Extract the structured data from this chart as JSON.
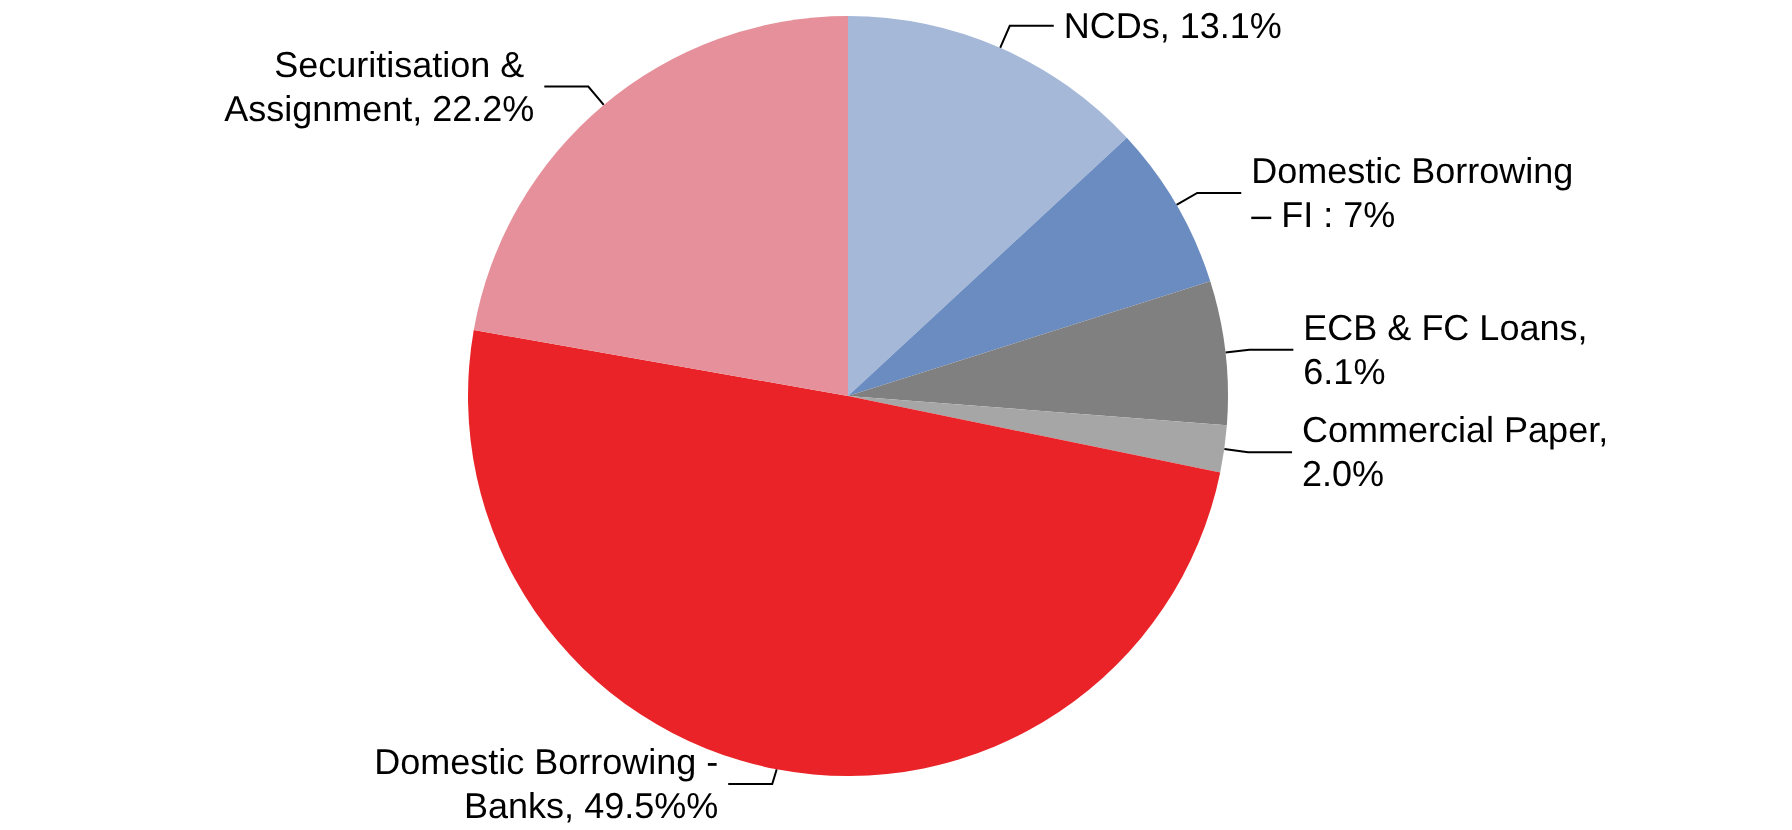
{
  "chart_data": {
    "type": "pie",
    "categories": [
      "NCDs",
      "Domestic Borrowing – FI",
      "ECB & FC Loans",
      "Commercial Paper",
      "Domestic Borrowing - Banks",
      "Securitisation & Assignment"
    ],
    "values": [
      13.1,
      7,
      6.1,
      2.0,
      49.5,
      22.2
    ],
    "value_labels": [
      ", 13.1%",
      " : 7%",
      ", 6.1%",
      ", 2.0%",
      ", 49.5%%",
      ", 22.2%"
    ],
    "colors": [
      "#a5b8d8",
      "#6b8cc0",
      "#808080",
      "#a6a6a6",
      "#ea2328",
      "#e5909a"
    ],
    "legend": false
  }
}
